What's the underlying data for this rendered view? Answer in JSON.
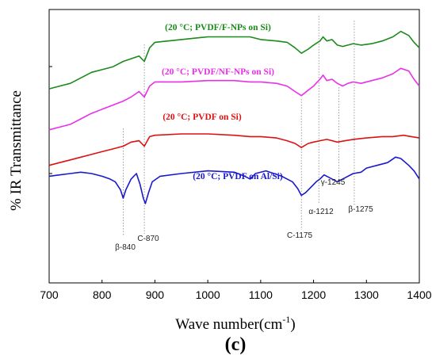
{
  "chart_data": {
    "type": "line",
    "panel_label": "(c)",
    "xlabel": "Wave number(cm",
    "xlabel_sup": "-1",
    "xlabel_end": ")",
    "ylabel": "% IR Transmittance",
    "xlim": [
      700,
      1400
    ],
    "ylim": [
      0,
      1
    ],
    "x_ticks": [
      700,
      800,
      900,
      1000,
      1100,
      1200,
      1300,
      1400
    ],
    "x_tick_labels": [
      "700",
      "800",
      "900",
      "1000",
      "1100",
      "1200",
      "1300",
      "1400"
    ],
    "grid": false,
    "series": [
      {
        "name": "(20 °C; PVDF/F-NPs on Si)",
        "color": "#1a8a1a",
        "points": [
          [
            700,
            0.71
          ],
          [
            720,
            0.72
          ],
          [
            740,
            0.73
          ],
          [
            760,
            0.75
          ],
          [
            780,
            0.77
          ],
          [
            800,
            0.78
          ],
          [
            820,
            0.79
          ],
          [
            840,
            0.81
          ],
          [
            855,
            0.82
          ],
          [
            870,
            0.83
          ],
          [
            880,
            0.81
          ],
          [
            890,
            0.86
          ],
          [
            900,
            0.88
          ],
          [
            950,
            0.89
          ],
          [
            1000,
            0.9
          ],
          [
            1050,
            0.9
          ],
          [
            1080,
            0.9
          ],
          [
            1100,
            0.89
          ],
          [
            1130,
            0.885
          ],
          [
            1150,
            0.88
          ],
          [
            1165,
            0.86
          ],
          [
            1177,
            0.84
          ],
          [
            1190,
            0.855
          ],
          [
            1200,
            0.87
          ],
          [
            1212,
            0.885
          ],
          [
            1218,
            0.9
          ],
          [
            1225,
            0.885
          ],
          [
            1235,
            0.89
          ],
          [
            1245,
            0.87
          ],
          [
            1255,
            0.865
          ],
          [
            1265,
            0.87
          ],
          [
            1275,
            0.875
          ],
          [
            1290,
            0.87
          ],
          [
            1310,
            0.875
          ],
          [
            1330,
            0.885
          ],
          [
            1350,
            0.9
          ],
          [
            1365,
            0.92
          ],
          [
            1380,
            0.905
          ],
          [
            1390,
            0.88
          ],
          [
            1400,
            0.86
          ]
        ]
      },
      {
        "name": "(20 °C; PVDF/NF-NPs on Si)",
        "color": "#e830e8",
        "points": [
          [
            700,
            0.56
          ],
          [
            720,
            0.57
          ],
          [
            740,
            0.58
          ],
          [
            760,
            0.6
          ],
          [
            780,
            0.62
          ],
          [
            800,
            0.635
          ],
          [
            820,
            0.65
          ],
          [
            840,
            0.665
          ],
          [
            855,
            0.68
          ],
          [
            870,
            0.7
          ],
          [
            880,
            0.68
          ],
          [
            890,
            0.72
          ],
          [
            900,
            0.735
          ],
          [
            950,
            0.735
          ],
          [
            1000,
            0.74
          ],
          [
            1050,
            0.74
          ],
          [
            1080,
            0.735
          ],
          [
            1100,
            0.735
          ],
          [
            1130,
            0.73
          ],
          [
            1150,
            0.72
          ],
          [
            1165,
            0.7
          ],
          [
            1177,
            0.685
          ],
          [
            1190,
            0.705
          ],
          [
            1200,
            0.72
          ],
          [
            1212,
            0.745
          ],
          [
            1218,
            0.76
          ],
          [
            1225,
            0.74
          ],
          [
            1235,
            0.745
          ],
          [
            1245,
            0.73
          ],
          [
            1255,
            0.72
          ],
          [
            1265,
            0.73
          ],
          [
            1275,
            0.735
          ],
          [
            1290,
            0.73
          ],
          [
            1310,
            0.74
          ],
          [
            1330,
            0.75
          ],
          [
            1350,
            0.765
          ],
          [
            1365,
            0.785
          ],
          [
            1380,
            0.775
          ],
          [
            1390,
            0.745
          ],
          [
            1400,
            0.72
          ]
        ]
      },
      {
        "name": "(20 °C; PVDF on Si)",
        "color": "#dd1111",
        "points": [
          [
            700,
            0.43
          ],
          [
            720,
            0.44
          ],
          [
            740,
            0.45
          ],
          [
            760,
            0.46
          ],
          [
            780,
            0.47
          ],
          [
            800,
            0.48
          ],
          [
            820,
            0.49
          ],
          [
            840,
            0.5
          ],
          [
            855,
            0.515
          ],
          [
            870,
            0.52
          ],
          [
            880,
            0.5
          ],
          [
            890,
            0.535
          ],
          [
            900,
            0.54
          ],
          [
            950,
            0.545
          ],
          [
            1000,
            0.545
          ],
          [
            1050,
            0.54
          ],
          [
            1080,
            0.535
          ],
          [
            1100,
            0.535
          ],
          [
            1130,
            0.53
          ],
          [
            1150,
            0.52
          ],
          [
            1165,
            0.51
          ],
          [
            1177,
            0.495
          ],
          [
            1190,
            0.51
          ],
          [
            1200,
            0.515
          ],
          [
            1212,
            0.52
          ],
          [
            1225,
            0.525
          ],
          [
            1245,
            0.515
          ],
          [
            1260,
            0.52
          ],
          [
            1275,
            0.525
          ],
          [
            1300,
            0.53
          ],
          [
            1330,
            0.535
          ],
          [
            1350,
            0.535
          ],
          [
            1370,
            0.54
          ],
          [
            1385,
            0.535
          ],
          [
            1400,
            0.53
          ]
        ]
      },
      {
        "name": "(20 °C; PVDF on Al/Si)",
        "color": "#1a1acc",
        "points": [
          [
            700,
            0.39
          ],
          [
            720,
            0.395
          ],
          [
            740,
            0.4
          ],
          [
            760,
            0.405
          ],
          [
            780,
            0.4
          ],
          [
            800,
            0.39
          ],
          [
            815,
            0.38
          ],
          [
            825,
            0.37
          ],
          [
            835,
            0.34
          ],
          [
            840,
            0.31
          ],
          [
            845,
            0.34
          ],
          [
            855,
            0.38
          ],
          [
            865,
            0.4
          ],
          [
            872,
            0.36
          ],
          [
            878,
            0.31
          ],
          [
            882,
            0.29
          ],
          [
            888,
            0.33
          ],
          [
            895,
            0.37
          ],
          [
            910,
            0.39
          ],
          [
            950,
            0.4
          ],
          [
            1000,
            0.41
          ],
          [
            1050,
            0.405
          ],
          [
            1070,
            0.39
          ],
          [
            1080,
            0.38
          ],
          [
            1090,
            0.4
          ],
          [
            1110,
            0.41
          ],
          [
            1140,
            0.39
          ],
          [
            1160,
            0.37
          ],
          [
            1170,
            0.345
          ],
          [
            1177,
            0.32
          ],
          [
            1185,
            0.33
          ],
          [
            1195,
            0.35
          ],
          [
            1205,
            0.37
          ],
          [
            1212,
            0.38
          ],
          [
            1220,
            0.395
          ],
          [
            1230,
            0.385
          ],
          [
            1245,
            0.37
          ],
          [
            1260,
            0.385
          ],
          [
            1275,
            0.4
          ],
          [
            1290,
            0.405
          ],
          [
            1300,
            0.42
          ],
          [
            1320,
            0.43
          ],
          [
            1340,
            0.44
          ],
          [
            1355,
            0.46
          ],
          [
            1365,
            0.455
          ],
          [
            1380,
            0.43
          ],
          [
            1390,
            0.41
          ],
          [
            1400,
            0.38
          ]
        ]
      }
    ],
    "peak_annotations": [
      {
        "x": 840,
        "label": "β-840"
      },
      {
        "x": 880,
        "label": "C-870"
      },
      {
        "x": 1177,
        "label": "C-1175"
      },
      {
        "x": 1210,
        "label": "α-1212"
      },
      {
        "x": 1248,
        "label": "γ-1245"
      },
      {
        "x": 1277,
        "label": "β-1275"
      }
    ]
  }
}
